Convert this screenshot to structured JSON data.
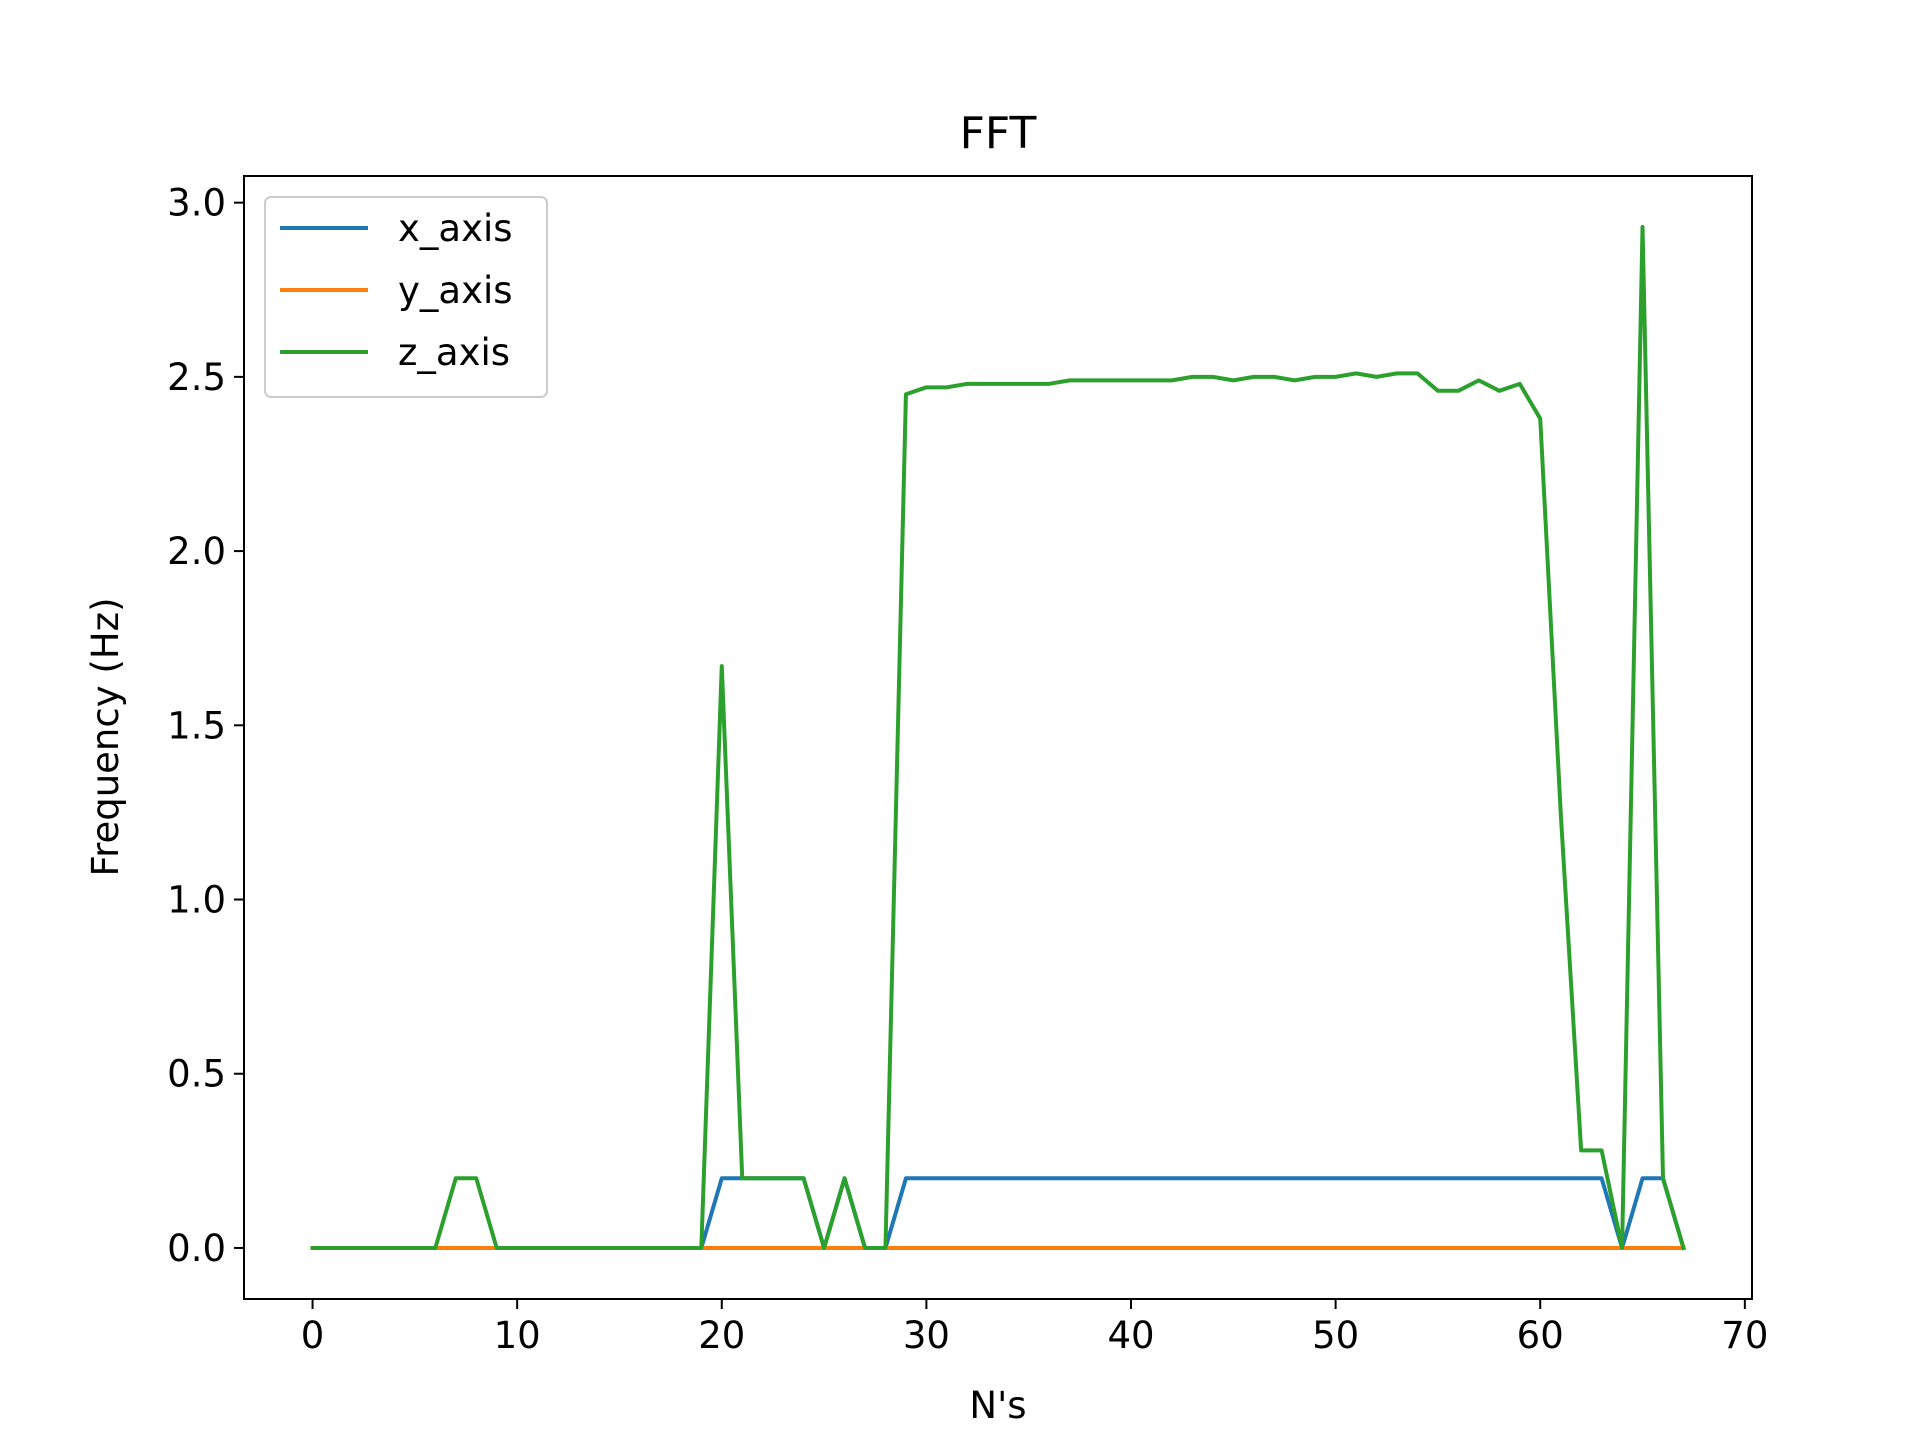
{
  "chart_data": {
    "type": "line",
    "title": "FFT",
    "xlabel": "N's",
    "ylabel": "Frequency (Hz)",
    "xlim": [
      -3.35,
      70.35
    ],
    "ylim": [
      -0.1465,
      3.0765
    ],
    "xticks": [
      0,
      10,
      20,
      30,
      40,
      50,
      60,
      70
    ],
    "xtick_labels": [
      "0",
      "10",
      "20",
      "30",
      "40",
      "50",
      "60",
      "70"
    ],
    "yticks": [
      0.0,
      0.5,
      1.0,
      1.5,
      2.0,
      2.5,
      3.0
    ],
    "ytick_labels": [
      "0.0",
      "0.5",
      "1.0",
      "1.5",
      "2.0",
      "2.5",
      "3.0"
    ],
    "grid": false,
    "legend_position": "upper-left",
    "x": [
      0,
      1,
      2,
      3,
      4,
      5,
      6,
      7,
      8,
      9,
      10,
      11,
      12,
      13,
      14,
      15,
      16,
      17,
      18,
      19,
      20,
      21,
      22,
      23,
      24,
      25,
      26,
      27,
      28,
      29,
      30,
      31,
      32,
      33,
      34,
      35,
      36,
      37,
      38,
      39,
      40,
      41,
      42,
      43,
      44,
      45,
      46,
      47,
      48,
      49,
      50,
      51,
      52,
      53,
      54,
      55,
      56,
      57,
      58,
      59,
      60,
      61,
      62,
      63,
      64,
      65,
      66,
      67
    ],
    "series": [
      {
        "name": "x_axis",
        "color": "#1f77b4",
        "values": [
          0,
          0,
          0,
          0,
          0,
          0,
          0,
          0,
          0,
          0,
          0,
          0,
          0,
          0,
          0,
          0,
          0,
          0,
          0,
          0,
          0.2,
          0.2,
          0.2,
          0.2,
          0.2,
          0,
          0.2,
          0,
          0,
          0.2,
          0.2,
          0.2,
          0.2,
          0.2,
          0.2,
          0.2,
          0.2,
          0.2,
          0.2,
          0.2,
          0.2,
          0.2,
          0.2,
          0.2,
          0.2,
          0.2,
          0.2,
          0.2,
          0.2,
          0.2,
          0.2,
          0.2,
          0.2,
          0.2,
          0.2,
          0.2,
          0.2,
          0.2,
          0.2,
          0.2,
          0.2,
          0.2,
          0.2,
          0.2,
          0,
          0.2,
          0.2,
          0
        ]
      },
      {
        "name": "y_axis",
        "color": "#ff7f0e",
        "values": [
          0,
          0,
          0,
          0,
          0,
          0,
          0,
          0,
          0,
          0,
          0,
          0,
          0,
          0,
          0,
          0,
          0,
          0,
          0,
          0,
          0,
          0,
          0,
          0,
          0,
          0,
          0,
          0,
          0,
          0,
          0,
          0,
          0,
          0,
          0,
          0,
          0,
          0,
          0,
          0,
          0,
          0,
          0,
          0,
          0,
          0,
          0,
          0,
          0,
          0,
          0,
          0,
          0,
          0,
          0,
          0,
          0,
          0,
          0,
          0,
          0,
          0,
          0,
          0,
          0,
          0,
          0,
          0
        ]
      },
      {
        "name": "z_axis",
        "color": "#2ca02c",
        "values": [
          0,
          0,
          0,
          0,
          0,
          0,
          0,
          0.2,
          0.2,
          0,
          0,
          0,
          0,
          0,
          0,
          0,
          0,
          0,
          0,
          0,
          1.67,
          0.2,
          0.2,
          0.2,
          0.2,
          0,
          0.2,
          0,
          0,
          2.45,
          2.47,
          2.47,
          2.48,
          2.48,
          2.48,
          2.48,
          2.48,
          2.49,
          2.49,
          2.49,
          2.49,
          2.49,
          2.49,
          2.5,
          2.5,
          2.49,
          2.5,
          2.5,
          2.49,
          2.5,
          2.5,
          2.51,
          2.5,
          2.51,
          2.51,
          2.46,
          2.46,
          2.49,
          2.46,
          2.48,
          2.38,
          1.25,
          0.28,
          0.28,
          0,
          2.93,
          0.2,
          0
        ]
      }
    ]
  }
}
